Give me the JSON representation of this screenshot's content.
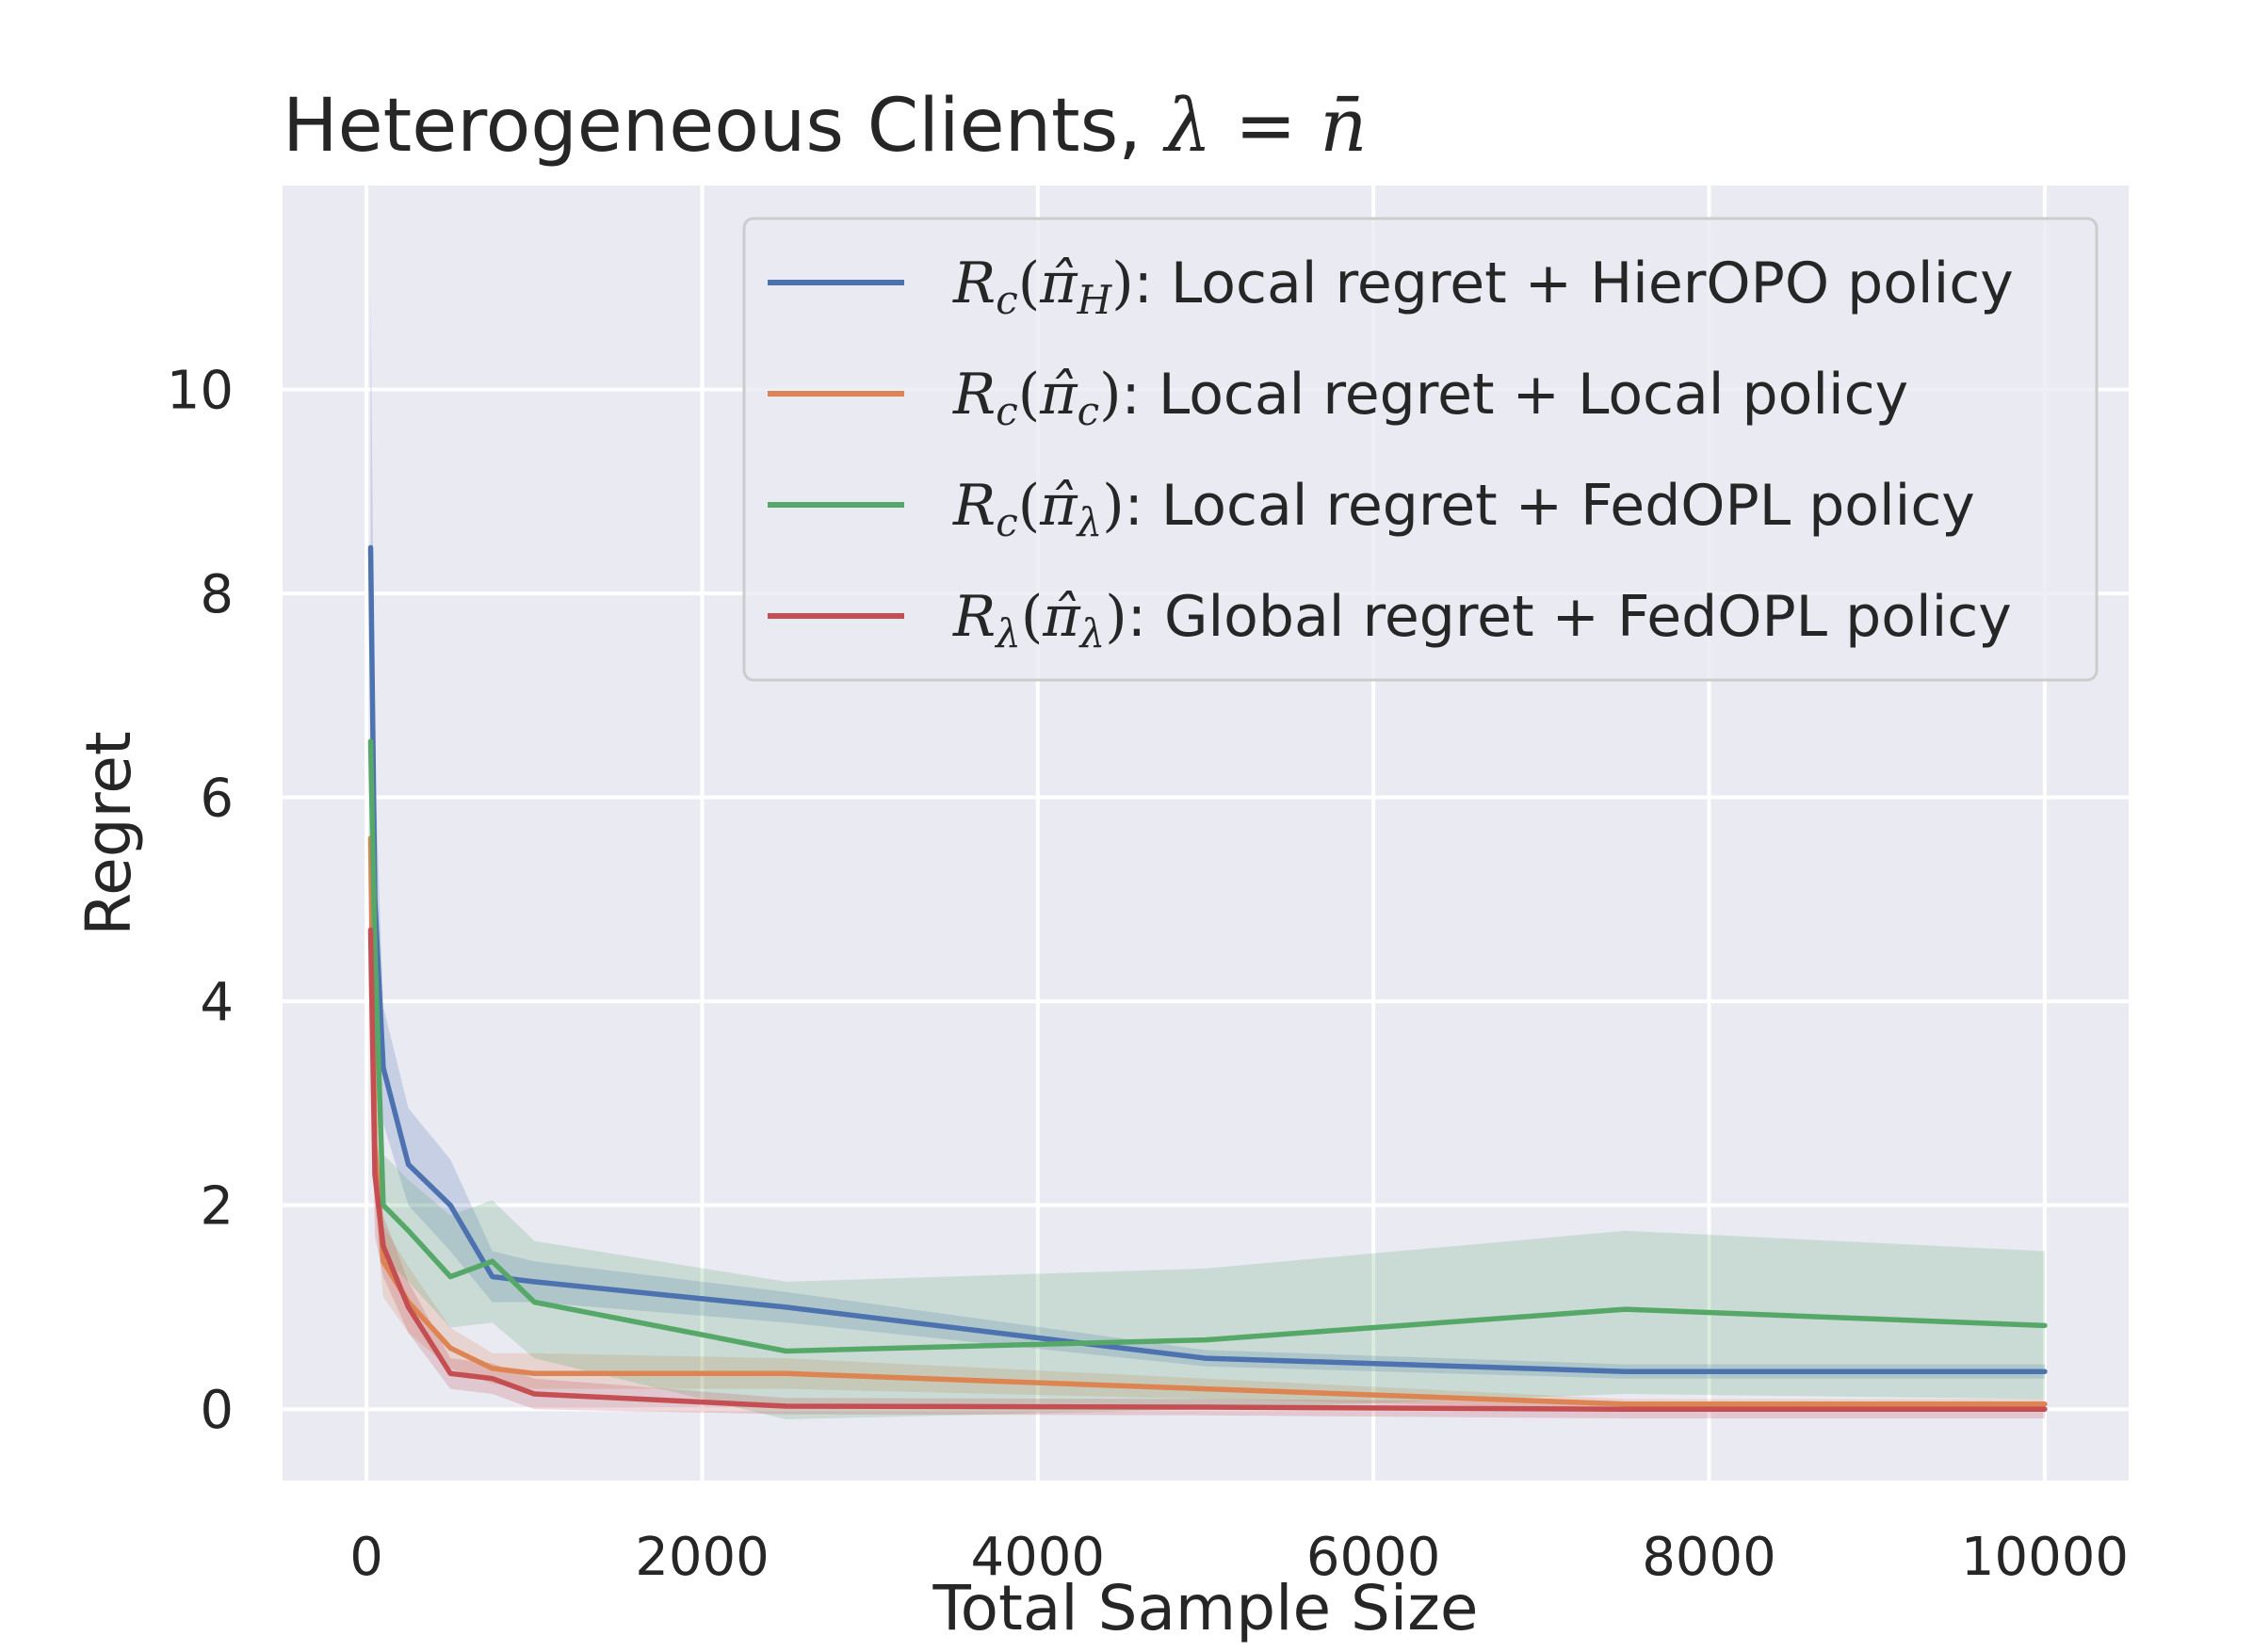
{
  "chart_data": {
    "type": "line",
    "title": "Heterogeneous Clients, λ = n̄",
    "xlabel": "Total Sample Size",
    "ylabel": "Regret",
    "xlim": [
      -500,
      10500
    ],
    "ylim": [
      -0.7,
      12.0
    ],
    "xticks": [
      0,
      2000,
      4000,
      6000,
      8000,
      10000
    ],
    "xtick_labels": [
      "0",
      "2000",
      "4000",
      "6000",
      "8000",
      "10000"
    ],
    "yticks": [
      0,
      2,
      4,
      6,
      8,
      10
    ],
    "ytick_labels": [
      "0",
      "2",
      "4",
      "6",
      "8",
      "10"
    ],
    "grid": true,
    "legend_position": "upper-right",
    "x": [
      25,
      50,
      100,
      250,
      500,
      750,
      1000,
      2500,
      5000,
      7500,
      10000
    ],
    "series": [
      {
        "name": "R_c(π̂_H): Local regret + HierOPO policy",
        "legend_text": ": Local regret + HierOPO policy",
        "color": "#4c72b0",
        "values": [
          8.45,
          5.0,
          3.35,
          2.4,
          2.0,
          1.3,
          1.25,
          1.0,
          0.5,
          0.37,
          0.37
        ],
        "lower": [
          6.5,
          3.8,
          2.8,
          2.0,
          1.55,
          1.05,
          1.05,
          0.85,
          0.42,
          0.3,
          0.3
        ],
        "upper": [
          11.0,
          6.3,
          3.95,
          2.95,
          2.45,
          1.55,
          1.45,
          1.15,
          0.58,
          0.44,
          0.44
        ]
      },
      {
        "name": "R_c(π̂_c): Local regret + Local policy",
        "legend_text": ": Local regret + Local policy",
        "color": "#dd8452",
        "values": [
          5.6,
          2.6,
          1.45,
          1.05,
          0.6,
          0.4,
          0.35,
          0.35,
          0.2,
          0.05,
          0.05
        ],
        "lower": [
          4.6,
          2.0,
          1.1,
          0.75,
          0.4,
          0.25,
          0.2,
          0.2,
          0.1,
          0.0,
          0.0
        ],
        "upper": [
          6.7,
          3.3,
          1.8,
          1.4,
          0.8,
          0.55,
          0.55,
          0.5,
          0.3,
          0.1,
          0.1
        ]
      },
      {
        "name": "R_c(π̂_λ): Local regret + FedOPL policy",
        "legend_text": ": Local regret + FedOPL policy",
        "color": "#55a868",
        "values": [
          6.55,
          4.5,
          2.0,
          1.75,
          1.3,
          1.45,
          1.05,
          0.57,
          0.68,
          0.98,
          0.82
        ],
        "lower": [
          5.3,
          3.5,
          1.5,
          1.25,
          0.8,
          0.85,
          0.5,
          -0.1,
          0.0,
          0.15,
          0.1
        ],
        "upper": [
          7.8,
          5.5,
          2.5,
          2.25,
          1.9,
          2.05,
          1.65,
          1.25,
          1.38,
          1.75,
          1.55
        ]
      },
      {
        "name": "R_λ(π̂_λ): Global regret + FedOPL policy",
        "legend_text": ": Global regret + FedOPL policy",
        "color": "#c44e52",
        "values": [
          4.7,
          2.3,
          1.6,
          1.0,
          0.35,
          0.3,
          0.15,
          0.03,
          0.02,
          0.0,
          0.0
        ],
        "lower": [
          3.8,
          1.7,
          1.3,
          0.75,
          0.2,
          0.15,
          0.0,
          -0.05,
          -0.06,
          -0.09,
          -0.09
        ],
        "upper": [
          5.6,
          2.9,
          1.9,
          1.25,
          0.5,
          0.45,
          0.3,
          0.11,
          0.1,
          0.07,
          0.07
        ]
      }
    ]
  }
}
